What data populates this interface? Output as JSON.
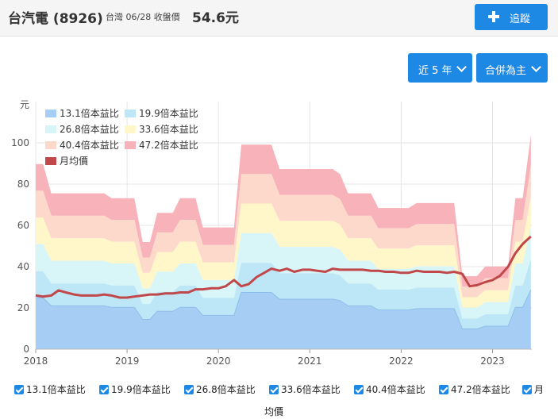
{
  "header": {
    "stock_name": "台汽電 (8926)",
    "market_date": "台灣 06/28 收盤價",
    "close_price": "54.6元",
    "track_button": "追蹤",
    "range_dropdown": "近 5 年",
    "mode_dropdown": "合併為主"
  },
  "colors": {
    "band_13_1": "#a6cdf3",
    "band_19_9": "#bde7f7",
    "band_26_8": "#d8f6f8",
    "band_33_6": "#fff6c9",
    "band_40_4": "#fdd9cb",
    "band_47_2": "#f8b3ba",
    "price_line": "#c0484a",
    "accent": "#1e88e5"
  },
  "chart_data": {
    "type": "area",
    "ylabel": "元",
    "ylim": [
      0,
      120
    ],
    "yticks": [
      0,
      20,
      40,
      60,
      80,
      100
    ],
    "xlim": [
      2018.0,
      2023.43
    ],
    "xticks": [
      "2018",
      "2019",
      "2020",
      "2021",
      "2022",
      "2023"
    ],
    "x": [
      2018.0,
      2018.08,
      2018.17,
      2018.25,
      2018.33,
      2018.42,
      2018.5,
      2018.58,
      2018.67,
      2018.75,
      2018.83,
      2018.92,
      2019.0,
      2019.08,
      2019.17,
      2019.25,
      2019.33,
      2019.42,
      2019.5,
      2019.58,
      2019.67,
      2019.75,
      2019.83,
      2019.92,
      2020.0,
      2020.08,
      2020.17,
      2020.25,
      2020.33,
      2020.42,
      2020.5,
      2020.58,
      2020.67,
      2020.75,
      2020.83,
      2020.92,
      2021.0,
      2021.08,
      2021.17,
      2021.25,
      2021.33,
      2021.42,
      2021.5,
      2021.58,
      2021.67,
      2021.75,
      2021.83,
      2021.92,
      2022.0,
      2022.08,
      2022.17,
      2022.25,
      2022.33,
      2022.42,
      2022.5,
      2022.58,
      2022.67,
      2022.75,
      2022.83,
      2022.92,
      2023.0,
      2023.08,
      2023.17,
      2023.25,
      2023.33,
      2023.42
    ],
    "eps": [
      1.9,
      1.9,
      1.6,
      1.6,
      1.6,
      1.6,
      1.6,
      1.6,
      1.6,
      1.6,
      1.55,
      1.55,
      1.55,
      1.55,
      1.1,
      1.1,
      1.4,
      1.4,
      1.4,
      1.55,
      1.55,
      1.55,
      1.25,
      1.25,
      1.25,
      1.25,
      1.25,
      2.1,
      2.1,
      2.1,
      2.1,
      2.1,
      1.85,
      1.85,
      1.85,
      1.85,
      1.85,
      1.85,
      1.85,
      1.85,
      1.8,
      1.6,
      1.6,
      1.6,
      1.6,
      1.45,
      1.45,
      1.45,
      1.45,
      1.45,
      1.5,
      1.5,
      1.5,
      1.5,
      1.5,
      1.5,
      0.75,
      0.75,
      0.75,
      0.85,
      0.85,
      0.85,
      0.85,
      1.55,
      1.55,
      2.2
    ],
    "series": [
      {
        "name": "13.1倍本益比",
        "multiple": 13.1
      },
      {
        "name": "19.9倍本益比",
        "multiple": 19.9
      },
      {
        "name": "26.8倍本益比",
        "multiple": 26.8
      },
      {
        "name": "33.6倍本益比",
        "multiple": 33.6
      },
      {
        "name": "40.4倍本益比",
        "multiple": 40.4
      },
      {
        "name": "47.2倍本益比",
        "multiple": 47.2
      },
      {
        "name": "月均價",
        "values": [
          26.0,
          25.5,
          26.0,
          28.5,
          27.5,
          26.5,
          26.0,
          26.0,
          26.0,
          26.5,
          26.0,
          25.0,
          25.0,
          25.5,
          26.0,
          26.5,
          26.5,
          27.0,
          27.0,
          27.5,
          27.5,
          29.0,
          29.0,
          29.5,
          29.5,
          30.5,
          33.5,
          30.5,
          31.5,
          35.0,
          37.0,
          39.0,
          38.0,
          39.0,
          37.5,
          38.5,
          38.5,
          38.0,
          37.5,
          39.0,
          38.5,
          38.5,
          38.5,
          38.5,
          38.0,
          38.0,
          37.5,
          37.5,
          37.0,
          37.0,
          38.0,
          37.5,
          37.5,
          37.5,
          37.0,
          37.5,
          36.5,
          30.5,
          31.0,
          32.5,
          33.5,
          35.5,
          40.0,
          46.5,
          51.0,
          54.6
        ]
      }
    ],
    "legend_position": "top-left"
  },
  "checkboxes": [
    "13.1倍本益比",
    "19.9倍本益比",
    "26.8倍本益比",
    "33.6倍本益比",
    "40.4倍本益比",
    "47.2倍本益比",
    "月"
  ],
  "checkbox_wrap": "均價"
}
